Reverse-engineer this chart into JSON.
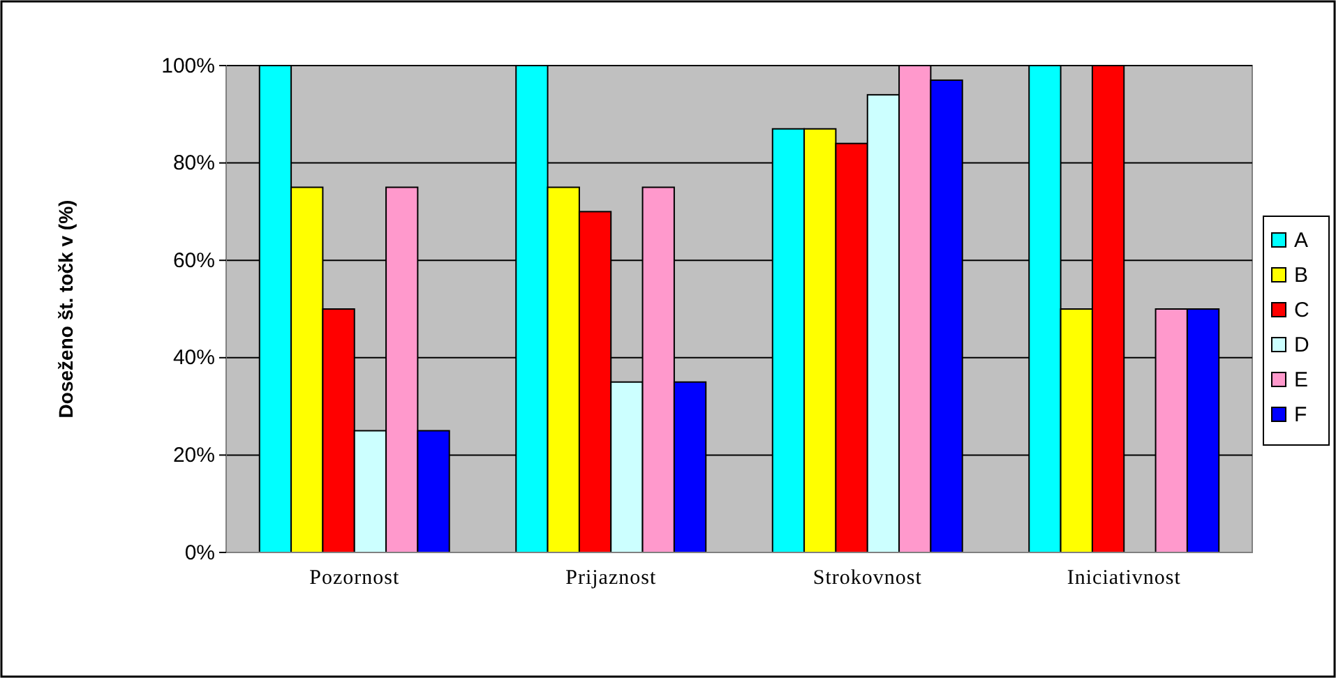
{
  "chart_data": {
    "type": "bar",
    "ylabel": "Doseženo št. točk v (%)",
    "categories": [
      "Pozornost",
      "Prijaznost",
      "Strokovnost",
      "Iniciativnost"
    ],
    "series": [
      {
        "name": "A",
        "color": "#00ffff",
        "values": [
          100,
          100,
          87,
          100
        ]
      },
      {
        "name": "B",
        "color": "#ffff00",
        "values": [
          75,
          75,
          87,
          50
        ]
      },
      {
        "name": "C",
        "color": "#ff0000",
        "values": [
          50,
          70,
          84,
          100
        ]
      },
      {
        "name": "D",
        "color": "#ccffff",
        "values": [
          25,
          35,
          94,
          0
        ]
      },
      {
        "name": "E",
        "color": "#ff99cc",
        "values": [
          75,
          75,
          100,
          50
        ]
      },
      {
        "name": "F",
        "color": "#0000ff",
        "values": [
          25,
          35,
          97,
          50
        ]
      }
    ],
    "ylim": [
      0,
      100
    ],
    "yticks": [
      {
        "value": 0,
        "label": "0%"
      },
      {
        "value": 20,
        "label": "20%"
      },
      {
        "value": 40,
        "label": "40%"
      },
      {
        "value": 60,
        "label": "60%"
      },
      {
        "value": 80,
        "label": "80%"
      },
      {
        "value": 100,
        "label": "100%"
      }
    ],
    "grid": "y",
    "legend": "right"
  }
}
